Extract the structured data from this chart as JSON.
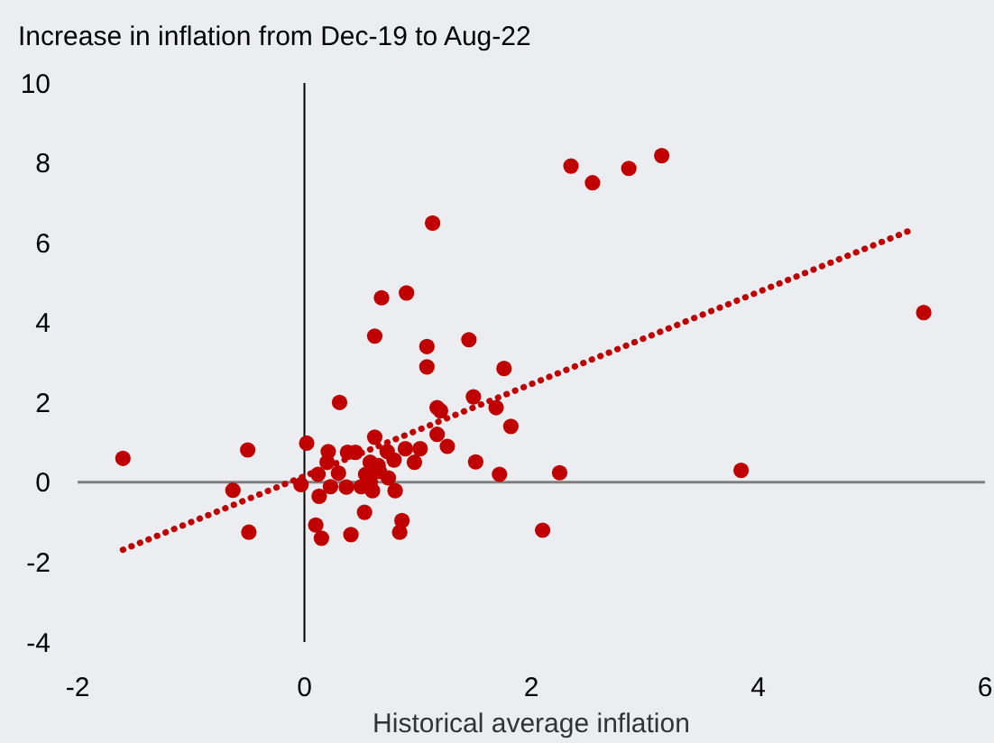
{
  "chart_data": {
    "type": "scatter",
    "title": "Increase in inflation from Dec-19 to Aug-22",
    "xlabel": "Historical average inflation",
    "xlim": [
      -2,
      6
    ],
    "xticks": [
      -2,
      0,
      2,
      4,
      6
    ],
    "ylim": [
      -4,
      10
    ],
    "yticks": [
      -4,
      -2,
      0,
      2,
      4,
      6,
      8,
      10
    ],
    "grid": false,
    "series": [
      {
        "color": "#c00000",
        "marker": "circle",
        "x": [
          -1.6,
          -0.5,
          -0.63,
          -0.49,
          0.02,
          -0.03,
          0.12,
          0.13,
          0.1,
          0.15,
          0.21,
          0.2,
          0.23,
          0.3,
          0.31,
          0.37,
          0.38,
          0.45,
          0.41,
          0.53,
          0.5,
          0.54,
          0.58,
          0.6,
          0.62,
          0.62,
          0.65,
          0.68,
          0.73,
          0.74,
          0.79,
          0.8,
          0.86,
          0.84,
          0.9,
          0.89,
          0.97,
          1.02,
          1.08,
          1.08,
          1.13,
          1.17,
          1.17,
          1.2,
          1.26,
          1.45,
          1.49,
          1.51,
          1.69,
          1.72,
          1.76,
          1.82,
          2.1,
          2.25,
          2.35,
          2.54,
          2.86,
          3.15,
          3.85,
          5.46,
          0.58,
          0.66
        ],
        "values": [
          0.6,
          0.81,
          -0.2,
          -1.25,
          0.98,
          -0.06,
          0.2,
          -0.35,
          -1.07,
          -1.4,
          0.77,
          0.5,
          -0.11,
          0.23,
          2.0,
          -0.12,
          0.75,
          0.75,
          -1.31,
          -0.75,
          -0.11,
          0.2,
          0.5,
          -0.21,
          1.13,
          3.66,
          0.42,
          4.62,
          0.77,
          0.11,
          0.56,
          -0.21,
          -0.96,
          -1.25,
          4.74,
          0.84,
          0.5,
          0.84,
          3.4,
          2.89,
          6.49,
          1.2,
          1.87,
          1.79,
          0.9,
          3.57,
          2.14,
          0.51,
          1.87,
          0.2,
          2.85,
          1.4,
          -1.2,
          0.24,
          7.92,
          7.5,
          7.86,
          8.18,
          0.3,
          4.25,
          0.0,
          0.27
        ]
      },
      {
        "type": "line",
        "color": "#c00000",
        "line_style": "dotted",
        "x": [
          -1.6,
          5.36
        ],
        "values": [
          -1.69,
          6.33
        ]
      }
    ]
  }
}
